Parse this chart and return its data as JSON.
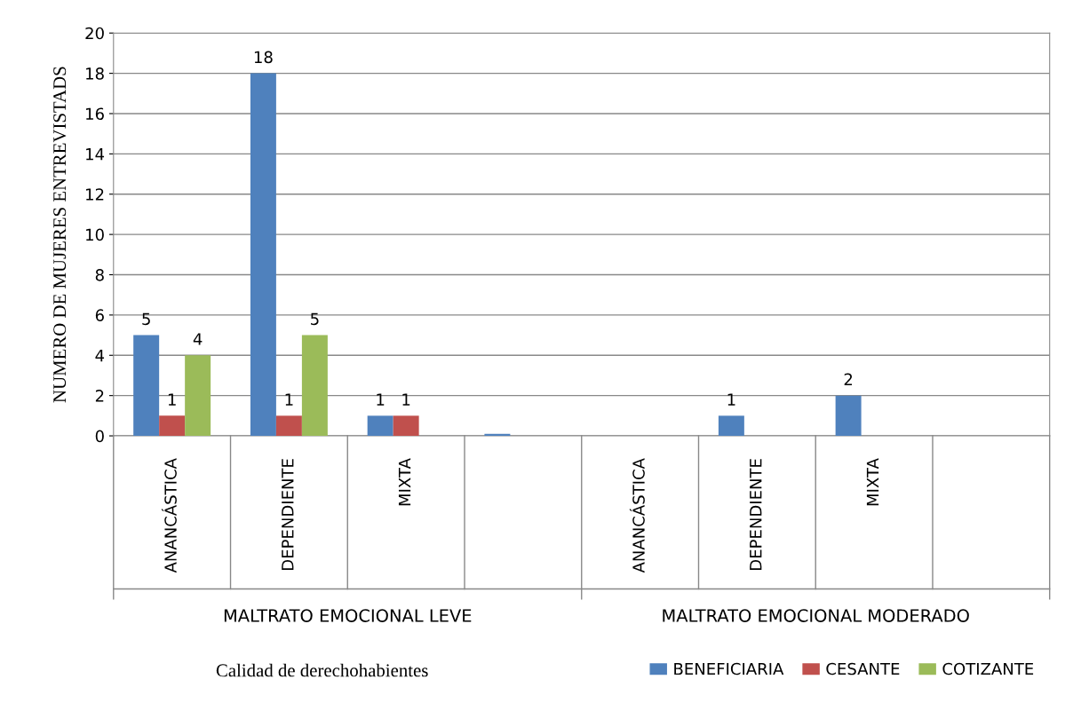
{
  "chart_data": {
    "type": "bar",
    "ylabel": "NUMERO DE MUJERES ENTREVISTADS",
    "legend_title": "Calidad de derechohabientes",
    "categories": [
      "ANANCÁSTICA",
      "DEPENDIENTE",
      "MIXTA",
      null,
      "ANANCÁSTICA",
      "DEPENDIENTE",
      "MIXTA",
      null
    ],
    "series": [
      {
        "name": "BENEFICIARIA",
        "color": "#4f81bd",
        "values": [
          5,
          18,
          1,
          0.1,
          null,
          1,
          2,
          null
        ],
        "value_labels": [
          "5",
          "18",
          "1",
          null,
          null,
          "1",
          "2",
          null
        ]
      },
      {
        "name": "CESANTE",
        "color": "#c0504d",
        "values": [
          1,
          1,
          1,
          null,
          null,
          null,
          null,
          null
        ],
        "value_labels": [
          "1",
          "1",
          "1",
          null,
          null,
          null,
          null,
          null
        ]
      },
      {
        "name": "COTIZANTE",
        "color": "#9bbb59",
        "values": [
          4,
          5,
          null,
          null,
          null,
          null,
          null,
          null
        ],
        "value_labels": [
          "4",
          "5",
          null,
          null,
          null,
          null,
          null,
          null
        ]
      }
    ],
    "annotations": [
      "MALTRATO EMOCIONAL LEVE",
      "MALTRATO EMOCIONAL MODERADO"
    ],
    "ylim": [
      0,
      20
    ],
    "yticks": [
      0,
      2,
      4,
      6,
      8,
      10,
      12,
      14,
      16,
      18,
      20
    ],
    "grid": "y",
    "legend": "bottom right"
  }
}
